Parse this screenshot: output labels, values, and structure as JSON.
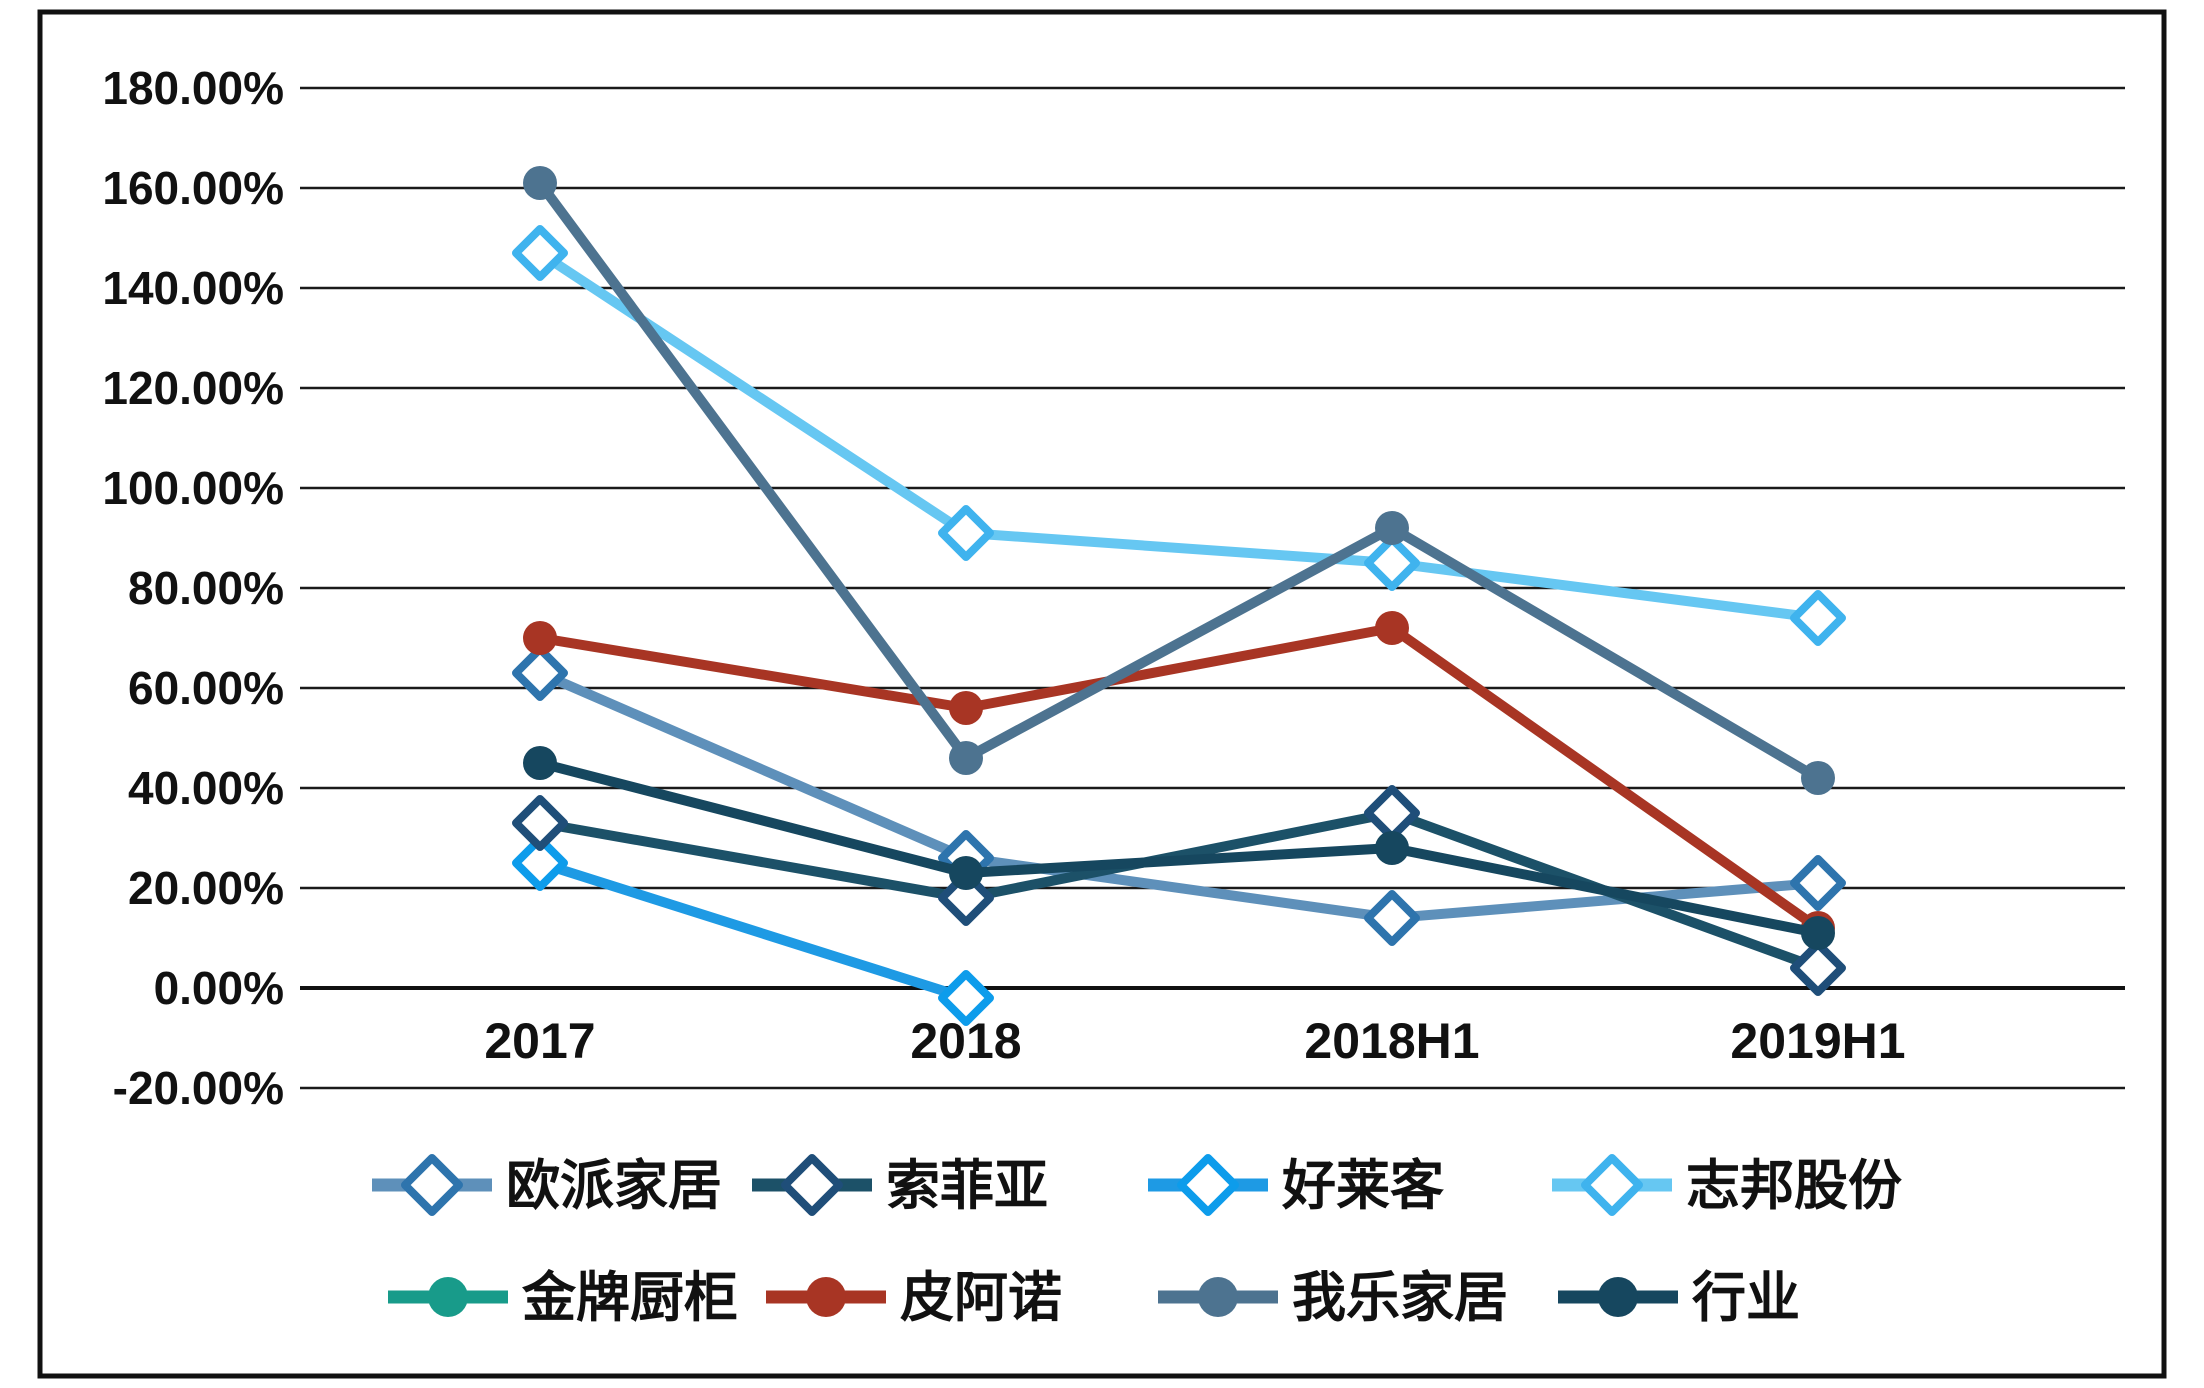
{
  "figure": {
    "background": "#ffffff",
    "frame_border_color": "#111111"
  },
  "chart_data": {
    "type": "line",
    "title": "",
    "xlabel": "",
    "ylabel": "",
    "categories": [
      "2017",
      "2018",
      "2018H1",
      "2019H1"
    ],
    "y_axis": {
      "min_pct": -20,
      "max_pct": 180,
      "step_pct": 20,
      "tick_labels": [
        "180.00%",
        "160.00%",
        "140.00%",
        "120.00%",
        "100.00%",
        "80.00%",
        "60.00%",
        "40.00%",
        "20.00%",
        "0.00%",
        "-20.00%"
      ],
      "grid": true,
      "grid_color": "#1a1a1a",
      "axis_zero_color": "#111111",
      "text_color": "#111111"
    },
    "series": [
      {
        "name": "欧派家居",
        "marker": "diamond",
        "color": "#5e90ba",
        "marker_color": "#2e74ad",
        "values_pct": [
          63,
          26,
          14,
          21
        ]
      },
      {
        "name": "索菲亚",
        "marker": "diamond",
        "color": "#1c5168",
        "marker_color": "#1f4e79",
        "values_pct": [
          33,
          18,
          35,
          4
        ]
      },
      {
        "name": "好莱客",
        "marker": "diamond",
        "color": "#1e9ae4",
        "marker_color": "#0d9ceb",
        "values_pct": [
          25,
          -2,
          null,
          null
        ]
      },
      {
        "name": "志邦股份",
        "marker": "diamond",
        "color": "#66c7f2",
        "marker_color": "#3fb3ee",
        "values_pct": [
          147,
          91,
          85,
          74
        ]
      },
      {
        "name": "金牌厨柜",
        "marker": "circle",
        "color": "#189b8a",
        "marker_color": "#189b8a",
        "values_pct": [
          null,
          null,
          null,
          null
        ]
      },
      {
        "name": "皮阿诺",
        "marker": "circle",
        "color": "#a83524",
        "marker_color": "#a83524",
        "values_pct": [
          70,
          56,
          72,
          12
        ]
      },
      {
        "name": "我乐家居",
        "marker": "circle",
        "color": "#4d7390",
        "marker_color": "#4d7390",
        "values_pct": [
          161,
          46,
          92,
          42
        ]
      },
      {
        "name": "行业",
        "marker": "circle",
        "color": "#16475f",
        "marker_color": "#16475f",
        "values_pct": [
          45,
          23,
          28,
          11
        ]
      }
    ],
    "legend_position": "bottom",
    "legend_rows": [
      [
        "欧派家居",
        "索菲亚",
        "好莱客",
        "志邦股份"
      ],
      [
        "金牌厨柜",
        "皮阿诺",
        "我乐家居",
        "行业"
      ]
    ]
  }
}
